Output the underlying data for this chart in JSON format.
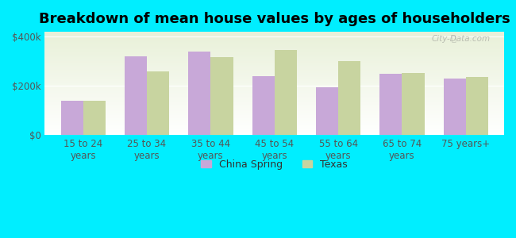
{
  "title": "Breakdown of mean house values by ages of householders",
  "categories": [
    "15 to 24\nyears",
    "25 to 34\nyears",
    "35 to 44\nyears",
    "45 to 54\nyears",
    "55 to 64\nyears",
    "65 to 74\nyears",
    "75 years+"
  ],
  "china_spring": [
    140000,
    320000,
    340000,
    240000,
    195000,
    248000,
    230000
  ],
  "texas": [
    140000,
    258000,
    318000,
    345000,
    300000,
    252000,
    235000
  ],
  "bar_color_cs": "#c8a8d8",
  "bar_color_tx": "#c8d4a0",
  "background_color": "#00eeff",
  "plot_bg_top": "#e8f0d8",
  "ylabel_ticks": [
    "$0",
    "$200k",
    "$400k"
  ],
  "ytick_vals": [
    0,
    200000,
    400000
  ],
  "ylim": [
    0,
    420000
  ],
  "legend_labels": [
    "China Spring",
    "Texas"
  ],
  "watermark": "City-Data.com",
  "title_fontsize": 13,
  "tick_fontsize": 8.5
}
